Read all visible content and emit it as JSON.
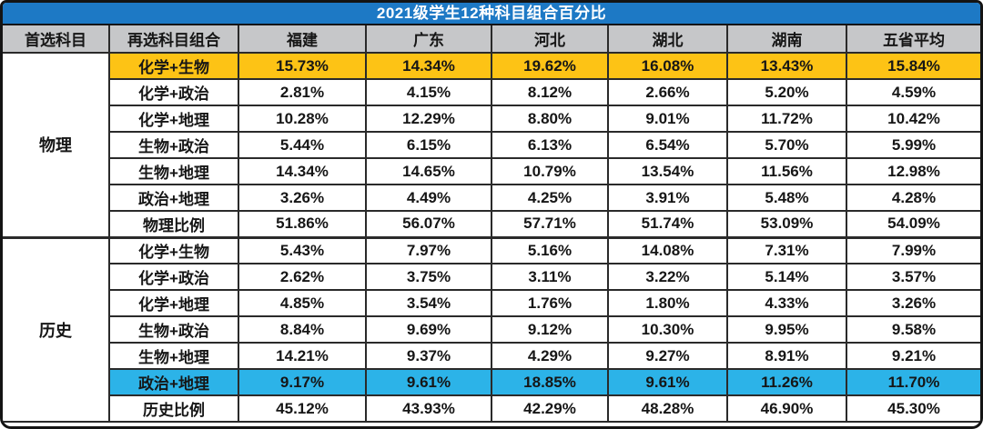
{
  "title": "2021级学生12种科目组合百分比",
  "colors": {
    "title_bg": "#1d79c5",
    "header_bg": "#c6c7c9",
    "highlight_yellow": "#fdc315",
    "highlight_blue": "#2cb3e8",
    "border": "#2a2a2a",
    "text": "#161616",
    "title_text": "#ffffff"
  },
  "chart_data": {
    "type": "table",
    "title": "2021级学生12种科目组合百分比",
    "columns": [
      "首选科目",
      "再选科目组合",
      "福建",
      "广东",
      "河北",
      "湖北",
      "湖南",
      "五省平均"
    ],
    "sections": [
      {
        "name": "物理",
        "rows": [
          {
            "combo": "化学+生物",
            "highlight": "yellow",
            "values": [
              "15.73%",
              "14.34%",
              "19.62%",
              "16.08%",
              "13.43%",
              "15.84%"
            ]
          },
          {
            "combo": "化学+政治",
            "highlight": "",
            "values": [
              "2.81%",
              "4.15%",
              "8.12%",
              "2.66%",
              "5.20%",
              "4.59%"
            ]
          },
          {
            "combo": "化学+地理",
            "highlight": "",
            "values": [
              "10.28%",
              "12.29%",
              "8.80%",
              "9.01%",
              "11.72%",
              "10.42%"
            ]
          },
          {
            "combo": "生物+政治",
            "highlight": "",
            "values": [
              "5.44%",
              "6.15%",
              "6.13%",
              "6.54%",
              "5.70%",
              "5.99%"
            ]
          },
          {
            "combo": "生物+地理",
            "highlight": "",
            "values": [
              "14.34%",
              "14.65%",
              "10.79%",
              "13.54%",
              "11.56%",
              "12.98%"
            ]
          },
          {
            "combo": "政治+地理",
            "highlight": "",
            "values": [
              "3.26%",
              "4.49%",
              "4.25%",
              "3.91%",
              "5.48%",
              "4.28%"
            ]
          },
          {
            "combo": "物理比例",
            "highlight": "",
            "values": [
              "51.86%",
              "56.07%",
              "57.71%",
              "51.74%",
              "53.09%",
              "54.09%"
            ]
          }
        ]
      },
      {
        "name": "历史",
        "rows": [
          {
            "combo": "化学+生物",
            "highlight": "",
            "values": [
              "5.43%",
              "7.97%",
              "5.16%",
              "14.08%",
              "7.31%",
              "7.99%"
            ]
          },
          {
            "combo": "化学+政治",
            "highlight": "",
            "values": [
              "2.62%",
              "3.75%",
              "3.11%",
              "3.22%",
              "5.14%",
              "3.57%"
            ]
          },
          {
            "combo": "化学+地理",
            "highlight": "",
            "values": [
              "4.85%",
              "3.54%",
              "1.76%",
              "1.80%",
              "4.33%",
              "3.26%"
            ]
          },
          {
            "combo": "生物+政治",
            "highlight": "",
            "values": [
              "8.84%",
              "9.69%",
              "9.12%",
              "10.30%",
              "9.95%",
              "9.58%"
            ]
          },
          {
            "combo": "生物+地理",
            "highlight": "",
            "values": [
              "14.21%",
              "9.37%",
              "4.29%",
              "9.27%",
              "8.91%",
              "9.21%"
            ]
          },
          {
            "combo": "政治+地理",
            "highlight": "blue",
            "values": [
              "9.17%",
              "9.61%",
              "18.85%",
              "9.61%",
              "11.26%",
              "11.70%"
            ]
          },
          {
            "combo": "历史比例",
            "highlight": "",
            "values": [
              "45.12%",
              "43.93%",
              "42.29%",
              "48.28%",
              "46.90%",
              "45.30%"
            ]
          }
        ]
      }
    ]
  }
}
